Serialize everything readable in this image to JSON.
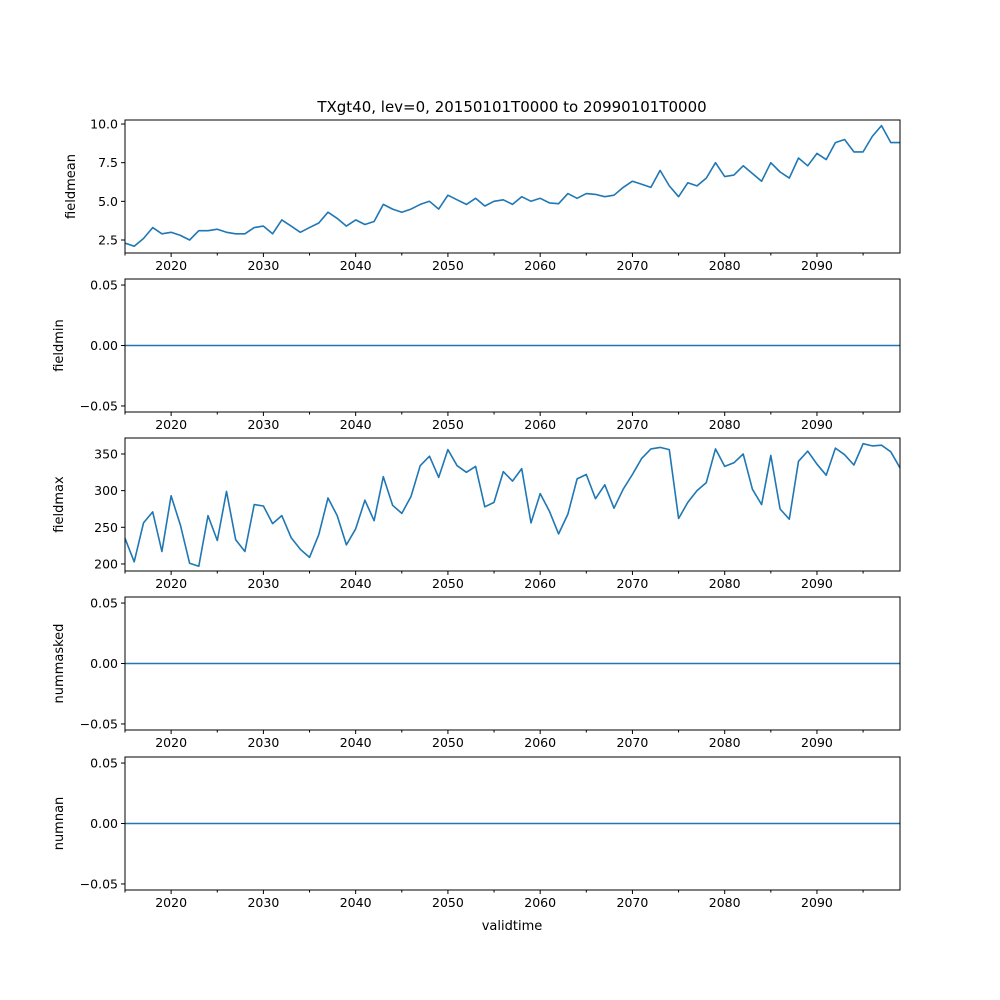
{
  "chart_data": [
    {
      "type": "line",
      "title": "TXgt40, lev=0, 20150101T0000 to 20990101T0000",
      "ylabel": "fieldmean",
      "xlabel": "",
      "xlim": [
        2015,
        2099
      ],
      "ylim": [
        1.66,
        10.26
      ],
      "yticks": [
        2.5,
        5.0,
        7.5,
        10.0
      ],
      "ytick_labels": [
        "2.5",
        "5.0",
        "7.5",
        "10.0"
      ],
      "x_start": 2015,
      "values": [
        2.3,
        2.1,
        2.6,
        3.3,
        2.9,
        3.0,
        2.8,
        2.5,
        3.1,
        3.1,
        3.2,
        3.0,
        2.9,
        2.9,
        3.3,
        3.4,
        2.9,
        3.8,
        3.4,
        3.0,
        3.3,
        3.6,
        4.3,
        3.9,
        3.4,
        3.8,
        3.5,
        3.7,
        4.8,
        4.5,
        4.3,
        4.5,
        4.8,
        5.0,
        4.5,
        5.4,
        5.1,
        4.8,
        5.2,
        4.7,
        5.0,
        5.1,
        4.8,
        5.3,
        5.0,
        5.2,
        4.9,
        4.85,
        5.5,
        5.2,
        5.5,
        5.45,
        5.3,
        5.4,
        5.9,
        6.3,
        6.1,
        5.9,
        7.0,
        6.0,
        5.3,
        6.2,
        6.0,
        6.5,
        7.5,
        6.6,
        6.7,
        7.3,
        6.8,
        6.3,
        7.5,
        6.9,
        6.5,
        7.8,
        7.3,
        8.1,
        7.7,
        8.8,
        9.0,
        8.2,
        8.2,
        9.2,
        9.9,
        8.8,
        8.8
      ]
    },
    {
      "type": "line",
      "ylabel": "fieldmin",
      "xlim": [
        2015,
        2099
      ],
      "ylim": [
        -0.055,
        0.055
      ],
      "yticks": [
        -0.05,
        0.0,
        0.05
      ],
      "ytick_labels": [
        "−0.05",
        "0.00",
        "0.05"
      ],
      "x_start": 2015,
      "constant": 0
    },
    {
      "type": "line",
      "ylabel": "fieldmax",
      "xlim": [
        2015,
        2099
      ],
      "ylim": [
        190.4,
        371.8
      ],
      "yticks": [
        200,
        250,
        300,
        350
      ],
      "ytick_labels": [
        "200",
        "250",
        "300",
        "350"
      ],
      "x_start": 2015,
      "values": [
        235,
        203,
        256,
        271,
        217,
        293,
        253,
        201,
        197,
        266,
        232,
        299,
        233,
        217,
        281,
        279,
        255,
        266,
        236,
        220,
        209,
        240,
        290,
        266,
        226,
        248,
        287,
        259,
        319,
        280,
        269,
        292,
        334,
        347,
        318,
        356,
        334,
        325,
        333,
        278,
        284,
        326,
        313,
        330,
        256,
        296,
        272,
        241,
        268,
        316,
        322,
        289,
        308,
        276,
        302,
        322,
        344,
        357,
        359,
        356,
        262,
        284,
        300,
        311,
        357,
        333,
        338,
        350,
        302,
        281,
        348,
        275,
        261,
        340,
        354,
        336,
        321,
        358,
        349,
        335,
        364,
        361,
        362,
        353,
        331
      ]
    },
    {
      "type": "line",
      "ylabel": "nummasked",
      "xlim": [
        2015,
        2099
      ],
      "ylim": [
        -0.055,
        0.055
      ],
      "yticks": [
        -0.05,
        0.0,
        0.05
      ],
      "ytick_labels": [
        "−0.05",
        "0.00",
        "0.05"
      ],
      "x_start": 2015,
      "constant": 0
    },
    {
      "type": "line",
      "ylabel": "numnan",
      "xlabel": "validtime",
      "xlim": [
        2015,
        2099
      ],
      "ylim": [
        -0.055,
        0.055
      ],
      "yticks": [
        -0.05,
        0.0,
        0.05
      ],
      "ytick_labels": [
        "−0.05",
        "0.00",
        "0.05"
      ],
      "x_start": 2015,
      "constant": 0
    }
  ],
  "xticks": [
    2020,
    2030,
    2040,
    2050,
    2060,
    2070,
    2080,
    2090
  ],
  "xtick_labels": [
    "2020",
    "2030",
    "2040",
    "2050",
    "2060",
    "2070",
    "2080",
    "2090"
  ],
  "line_color": "#1f77b4"
}
